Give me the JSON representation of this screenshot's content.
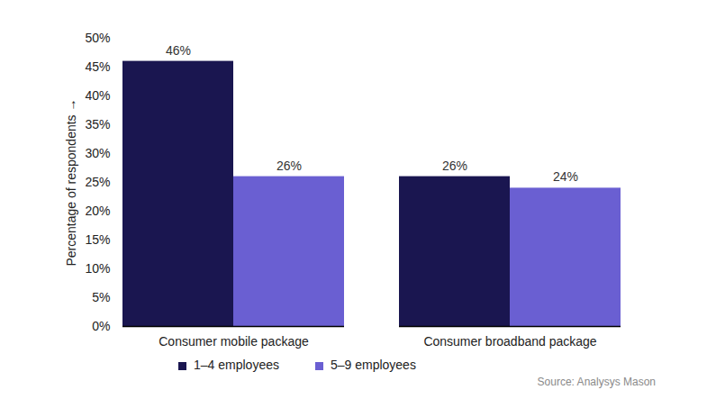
{
  "chart_data": {
    "type": "bar",
    "categories": [
      "Consumer mobile package",
      "Consumer broadband package"
    ],
    "series": [
      {
        "name": "1–4 employees",
        "color": "#1a1650",
        "values": [
          46,
          26
        ],
        "value_labels": [
          "46%",
          "26%"
        ]
      },
      {
        "name": "5–9 employees",
        "color": "#6a5fd2",
        "values": [
          26,
          24
        ],
        "value_labels": [
          "26%",
          "24%"
        ]
      }
    ],
    "y_label": "Percentage of respondents",
    "ylim": [
      0,
      50
    ],
    "yticks": [
      {
        "value": 0,
        "label": "0%"
      },
      {
        "value": 5,
        "label": "5%"
      },
      {
        "value": 10,
        "label": "10%"
      },
      {
        "value": 15,
        "label": "15%"
      },
      {
        "value": 20,
        "label": "20%"
      },
      {
        "value": 25,
        "label": "25%"
      },
      {
        "value": 30,
        "label": "30%"
      },
      {
        "value": 35,
        "label": "35%"
      },
      {
        "value": 40,
        "label": "40%"
      },
      {
        "value": 45,
        "label": "45%"
      },
      {
        "value": 50,
        "label": "50%"
      }
    ],
    "grid": false,
    "data_labels": true,
    "legend": "bottom",
    "caption": "Source: Analysys Mason"
  }
}
